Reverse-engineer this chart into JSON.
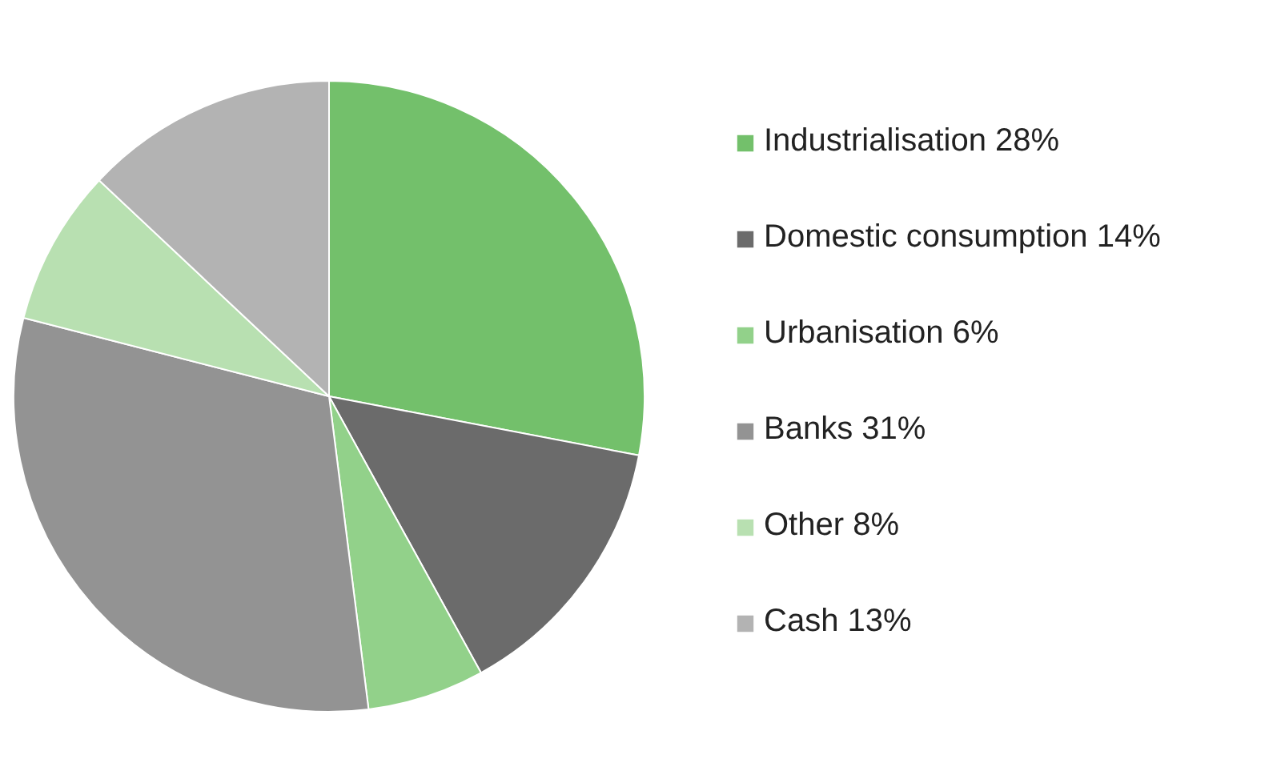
{
  "chart_data": {
    "type": "pie",
    "categories": [
      "Industrialisation 28%",
      "Domestic consumption 14%",
      "Urbanisation 6%",
      "Banks 31%",
      "Other 8%",
      "Cash 13%"
    ],
    "values": [
      28,
      14,
      6,
      31,
      8,
      13
    ],
    "colors": [
      "#73c06b",
      "#6b6b6b",
      "#92d18a",
      "#939393",
      "#b8e0b1",
      "#b3b3b3"
    ],
    "legend": "right"
  }
}
